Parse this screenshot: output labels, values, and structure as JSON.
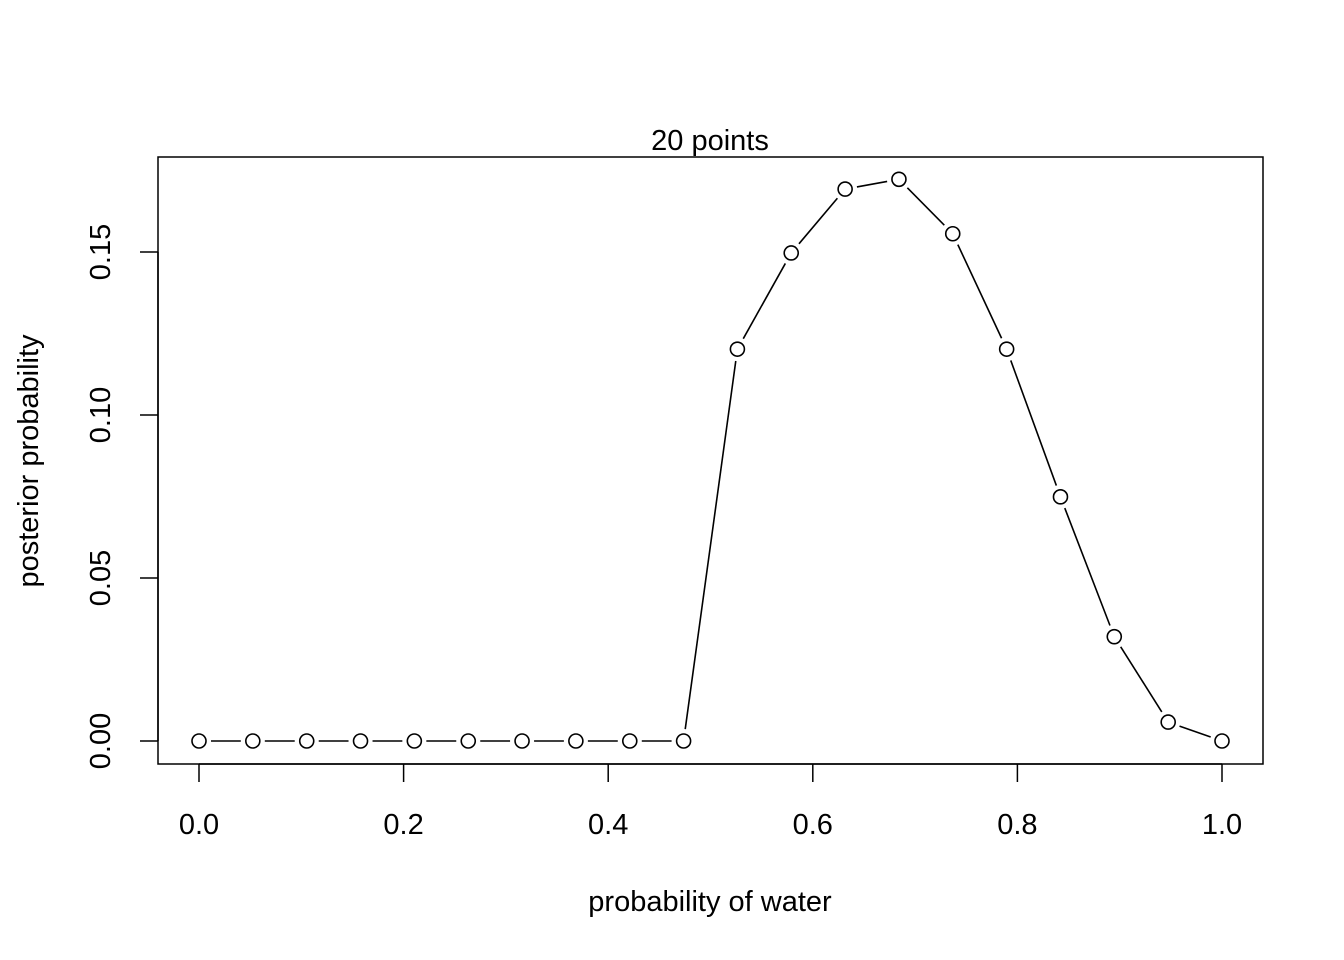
{
  "chart_data": {
    "type": "line",
    "title": "20 points",
    "xlabel": "probability of water",
    "ylabel": "posterior probability",
    "xlim": [
      0.0,
      1.0
    ],
    "ylim": [
      0.0,
      0.17
    ],
    "x_ticks": [
      0.0,
      0.2,
      0.4,
      0.6,
      0.8,
      1.0
    ],
    "x_tick_labels": [
      "0.0",
      "0.2",
      "0.4",
      "0.6",
      "0.8",
      "1.0"
    ],
    "y_ticks": [
      0.0,
      0.05,
      0.1,
      0.15
    ],
    "y_tick_labels": [
      "0.00",
      "0.05",
      "0.10",
      "0.15"
    ],
    "grid": false,
    "marker": "open-circle",
    "line_color": "#000000",
    "x": [
      0.0,
      0.0526,
      0.1053,
      0.1579,
      0.2105,
      0.2632,
      0.3158,
      0.3684,
      0.4211,
      0.4737,
      0.5263,
      0.5789,
      0.6316,
      0.6842,
      0.7368,
      0.7895,
      0.8421,
      0.8947,
      0.9474,
      1.0
    ],
    "y": [
      0.0,
      0.0,
      0.0,
      0.0,
      0.0,
      0.0,
      0.0,
      0.0,
      0.0,
      0.0,
      0.1202,
      0.1497,
      0.1693,
      0.1723,
      0.1556,
      0.1202,
      0.0749,
      0.032,
      0.0058,
      0.0
    ]
  }
}
